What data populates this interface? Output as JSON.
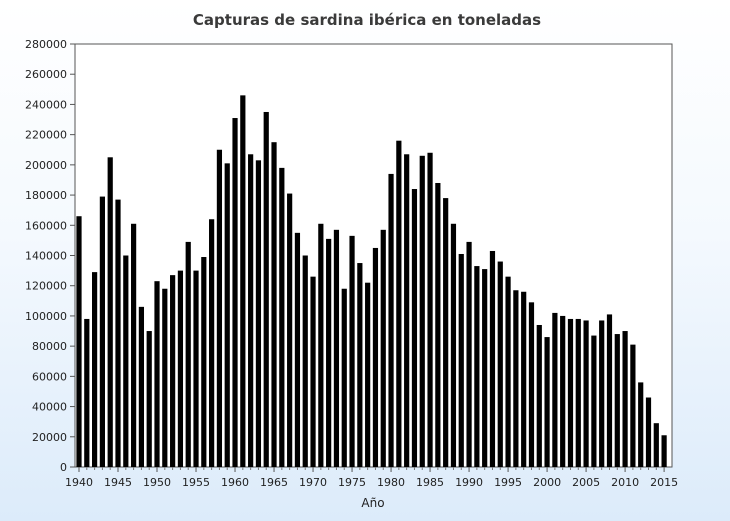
{
  "chart_data": {
    "type": "bar",
    "title": "Capturas de sardina ibérica en toneladas",
    "xlabel": "Año",
    "ylabel": "",
    "ylim": [
      0,
      280000
    ],
    "yticks": [
      0,
      20000,
      40000,
      60000,
      80000,
      100000,
      120000,
      140000,
      160000,
      180000,
      200000,
      220000,
      240000,
      260000,
      280000
    ],
    "xticks": [
      1940,
      1945,
      1950,
      1955,
      1960,
      1965,
      1970,
      1975,
      1980,
      1985,
      1990,
      1995,
      2000,
      2005,
      2010,
      2015
    ],
    "xlim": [
      1940,
      2015
    ],
    "bar_color": "#000000",
    "grid": false,
    "series": [
      {
        "x": [
          1940,
          1941,
          1942,
          1943,
          1944,
          1945,
          1946,
          1947,
          1948,
          1949,
          1950,
          1951,
          1952,
          1953,
          1954,
          1955,
          1956,
          1957,
          1958,
          1959,
          1960,
          1961,
          1962,
          1963,
          1964,
          1965,
          1966,
          1967,
          1968,
          1969,
          1970,
          1971,
          1972,
          1973,
          1974,
          1975,
          1976,
          1977,
          1978,
          1979,
          1980,
          1981,
          1982,
          1983,
          1984,
          1985,
          1986,
          1987,
          1988,
          1989,
          1990,
          1991,
          1992,
          1993,
          1994,
          1995,
          1996,
          1997,
          1998,
          1999,
          2000,
          2001,
          2002,
          2003,
          2004,
          2005,
          2006,
          2007,
          2008,
          2009,
          2010,
          2011,
          2012,
          2013,
          2014
        ],
        "values": [
          166000,
          98000,
          129000,
          179000,
          205000,
          177000,
          140000,
          161000,
          106000,
          90000,
          123000,
          118000,
          127000,
          130000,
          149000,
          130000,
          139000,
          164000,
          210000,
          201000,
          231000,
          246000,
          207000,
          203000,
          235000,
          215000,
          198000,
          181000,
          155000,
          140000,
          126000,
          161000,
          151000,
          157000,
          118000,
          153000,
          135000,
          122000,
          145000,
          157000,
          194000,
          216000,
          207000,
          184000,
          206000,
          208000,
          188000,
          178000,
          161000,
          141000,
          149000,
          133000,
          131000,
          143000,
          136000,
          126000,
          117000,
          116000,
          109000,
          94000,
          86000,
          102000,
          100000,
          98000,
          98000,
          97000,
          87000,
          97000,
          101000,
          88000,
          90000,
          81000,
          56000,
          46000,
          29000
        ]
      }
    ],
    "last_value_extra": {
      "x": 2015,
      "value": 21000
    }
  }
}
